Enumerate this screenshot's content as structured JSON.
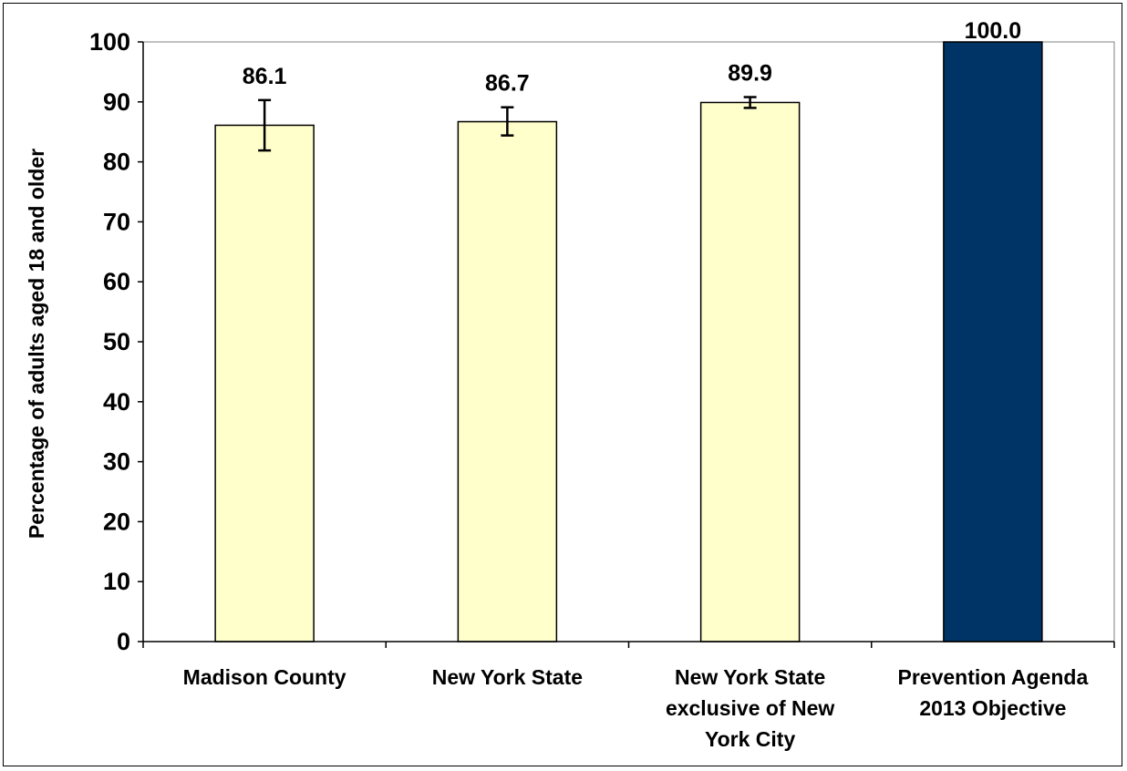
{
  "chart_data": {
    "type": "bar",
    "title": "",
    "xlabel": "",
    "ylabel": "Percentage of adults aged 18 and older",
    "ylim": [
      0,
      100
    ],
    "yticks": [
      0,
      10,
      20,
      30,
      40,
      50,
      60,
      70,
      80,
      90,
      100
    ],
    "grid": false,
    "categories": [
      [
        "Madison County"
      ],
      [
        "New York State"
      ],
      [
        "New York State",
        "exclusive of New",
        "York City"
      ],
      [
        "Prevention Agenda",
        "2013 Objective"
      ]
    ],
    "values": [
      86.1,
      86.7,
      89.9,
      100.0
    ],
    "value_labels": [
      "86.1",
      "86.7",
      "89.9",
      "100.0"
    ],
    "error_bars": [
      {
        "low": 81.9,
        "high": 90.3
      },
      {
        "low": 84.4,
        "high": 89.1
      },
      {
        "low": 89.0,
        "high": 90.8
      },
      null
    ],
    "bar_colors": [
      "#ffffcc",
      "#ffffcc",
      "#ffffcc",
      "#003366"
    ],
    "bar_outline": "#000000"
  }
}
